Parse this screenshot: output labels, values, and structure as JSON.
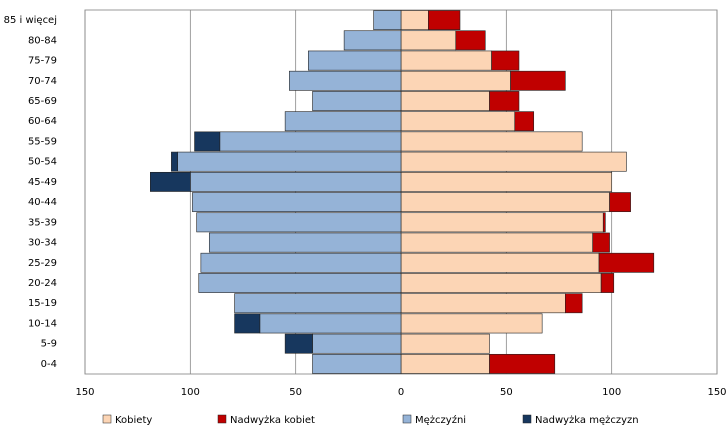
{
  "chart_data": {
    "type": "bar",
    "orientation": "horizontal",
    "categories": [
      "85 i więcej",
      "80-84",
      "75-79",
      "70-74",
      "65-69",
      "60-64",
      "55-59",
      "50-54",
      "45-49",
      "40-44",
      "35-39",
      "30-34",
      "25-29",
      "20-24",
      "15-19",
      "10-14",
      "5-9",
      "0-4"
    ],
    "series": [
      {
        "name": "Kobiety",
        "color": "#fcd5b5",
        "values": [
          13,
          26,
          43,
          52,
          42,
          54,
          86,
          107,
          100,
          99,
          96,
          91,
          94,
          95,
          78,
          67,
          42,
          42
        ]
      },
      {
        "name": "Nadwyżka kobiet",
        "color": "#c00000",
        "values": [
          15,
          14,
          13,
          26,
          14,
          9,
          0,
          0,
          0,
          10,
          1,
          8,
          26,
          6,
          8,
          0,
          0,
          31
        ]
      },
      {
        "name": "Mężczyźni",
        "color": "#95b3d7",
        "values": [
          -13,
          -27,
          -44,
          -53,
          -42,
          -55,
          -86,
          -106,
          -100,
          -99,
          -97,
          -91,
          -95,
          -96,
          -79,
          -67,
          -42,
          -42
        ]
      },
      {
        "name": "Nadwyżka mężczyzn",
        "color": "#17375e",
        "values": [
          0,
          0,
          0,
          0,
          0,
          0,
          -12,
          -3,
          -19,
          0,
          0,
          0,
          0,
          0,
          0,
          -12,
          -13,
          0
        ]
      }
    ],
    "xlim": [
      -150,
      150
    ],
    "xticks": [
      {
        "value": -150,
        "label": "150"
      },
      {
        "value": -100,
        "label": "100"
      },
      {
        "value": -50,
        "label": "50"
      },
      0,
      50,
      100,
      150
    ],
    "grid": true,
    "legend": "bottom"
  }
}
